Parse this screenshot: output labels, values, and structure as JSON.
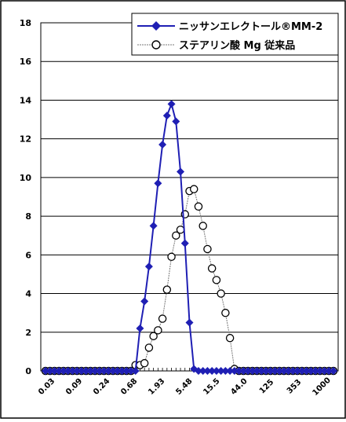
{
  "chart_data": {
    "type": "line",
    "title": "",
    "xlabel": "",
    "ylabel": "",
    "ylim": [
      0,
      18
    ],
    "y_ticks": [
      "0",
      "2",
      "4",
      "6",
      "8",
      "10",
      "12",
      "14",
      "16",
      "18"
    ],
    "x_tick_labels": [
      "0.03",
      "0.09",
      "0.24",
      "0.68",
      "1.93",
      "5.48",
      "15.5",
      "44.0",
      "125",
      "353",
      "1000"
    ],
    "grid": "horizontal",
    "legend_placement": "top-right",
    "series": [
      {
        "name": "ニッサンエレクトール®MM-2",
        "color": "#1f1fb4",
        "marker": "filled-diamond",
        "values": [
          0,
          0,
          0,
          0,
          0,
          0,
          0,
          0,
          0,
          0,
          0,
          0,
          0,
          0,
          0,
          0,
          0,
          0,
          0,
          0,
          0,
          2.2,
          3.6,
          5.4,
          7.5,
          9.7,
          11.7,
          13.2,
          13.8,
          12.9,
          10.3,
          6.6,
          2.5,
          0.1,
          0,
          0,
          0,
          0,
          0,
          0,
          0,
          0,
          0,
          0,
          0,
          0,
          0,
          0,
          0,
          0,
          0,
          0,
          0,
          0,
          0,
          0,
          0,
          0,
          0,
          0,
          0,
          0,
          0,
          0,
          0
        ]
      },
      {
        "name": "ステアリン酸 Mg 従来品",
        "color": "#222222",
        "marker": "open-circle",
        "values": [
          0,
          0,
          0,
          0,
          0,
          0,
          0,
          0,
          0,
          0,
          0,
          0,
          0,
          0,
          0,
          0,
          0,
          0,
          0,
          0,
          0.3,
          0.3,
          0.4,
          1.2,
          1.8,
          2.1,
          2.7,
          4.2,
          5.9,
          7.0,
          7.3,
          8.1,
          9.3,
          9.4,
          8.5,
          7.5,
          6.3,
          5.3,
          4.7,
          4.0,
          3.0,
          1.7,
          0.1,
          0,
          0,
          0,
          0,
          0,
          0,
          0,
          0,
          0,
          0,
          0,
          0,
          0,
          0,
          0,
          0,
          0,
          0,
          0,
          0,
          0,
          0
        ]
      }
    ]
  }
}
